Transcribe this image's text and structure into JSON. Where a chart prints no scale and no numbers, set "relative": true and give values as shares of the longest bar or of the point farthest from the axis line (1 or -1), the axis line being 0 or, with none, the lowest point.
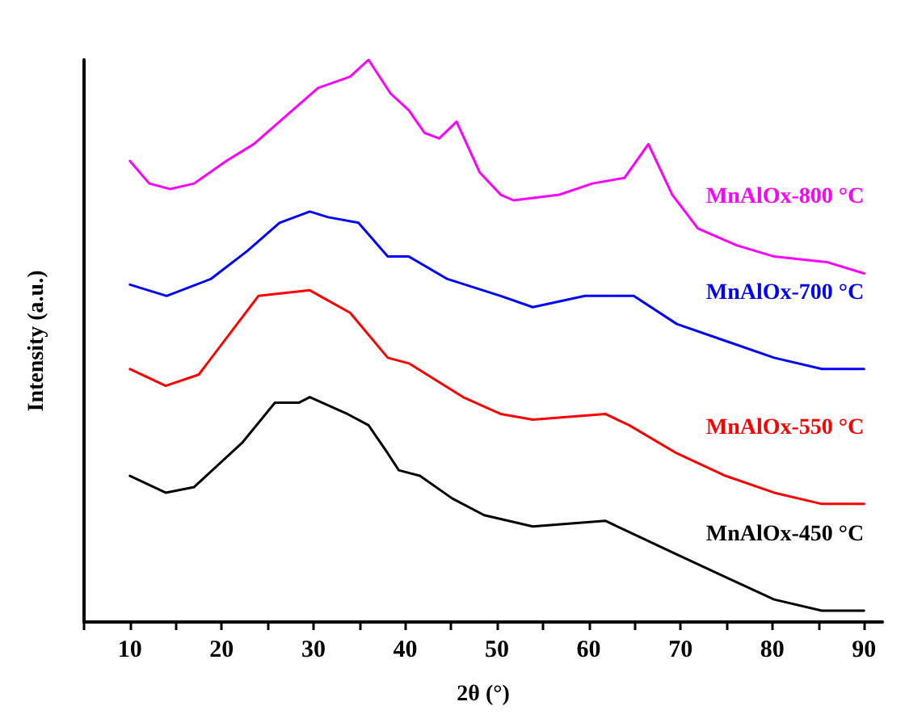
{
  "chart_data": {
    "type": "line",
    "xlabel": "2θ (°)",
    "ylabel": "Intensity (a.u.)",
    "relative": true,
    "marker": "none",
    "line_style": "solid",
    "grid": false,
    "legend": false,
    "xlim": [
      5,
      92
    ],
    "xticks": [
      {
        "value": 5,
        "label": null
      },
      10,
      {
        "value": 15,
        "label": null
      },
      20,
      {
        "value": 25,
        "label": null
      },
      30,
      {
        "value": 35,
        "label": null
      },
      40,
      {
        "value": 45,
        "label": null
      },
      50,
      {
        "value": 55,
        "label": null
      },
      60,
      {
        "value": 65,
        "label": null
      },
      70,
      {
        "value": 75,
        "label": null
      },
      80,
      {
        "value": 85,
        "label": null
      },
      90
    ],
    "series": [
      {
        "name": "MnAlOx-800 °C",
        "color": "#ff00ff",
        "x": [
          10,
          12.1,
          14.4,
          17,
          20.5,
          23.5,
          27,
          30.5,
          34,
          36,
          38.4,
          40.4,
          42.1,
          43.7,
          45.6,
          48.1,
          50.4,
          51.8,
          56.8,
          60.4,
          63.9,
          66.5,
          69.1,
          71.9,
          76.1,
          80.2,
          86,
          90
        ],
        "values": [
          0.82,
          0.78,
          0.77,
          0.78,
          0.82,
          0.85,
          0.9,
          0.95,
          0.97,
          1,
          0.94,
          0.91,
          0.87,
          0.86,
          0.89,
          0.8,
          0.76,
          0.75,
          0.76,
          0.78,
          0.79,
          0.85,
          0.76,
          0.7,
          0.67,
          0.65,
          0.64,
          0.62
        ]
      },
      {
        "name": "MnAlOx-700 °C",
        "color": "#0000ff",
        "x": [
          10,
          14,
          18.8,
          22.8,
          26.3,
          29.6,
          31.6,
          34.9,
          38.1,
          40.4,
          44.6,
          50.4,
          53.9,
          59.6,
          64.9,
          69.6,
          74.9,
          80.2,
          85.4,
          90
        ],
        "values": [
          0.6,
          0.58,
          0.61,
          0.66,
          0.71,
          0.73,
          0.72,
          0.71,
          0.65,
          0.65,
          0.61,
          0.58,
          0.56,
          0.58,
          0.58,
          0.53,
          0.5,
          0.47,
          0.45,
          0.45
        ]
      },
      {
        "name": "MnAlOx-550 °C",
        "color": "#ff0000",
        "x": [
          10,
          13.9,
          17.5,
          24,
          29.6,
          34,
          38.1,
          40.4,
          46.3,
          50.4,
          53.9,
          61.8,
          64.4,
          69.6,
          74.9,
          80.2,
          85.4,
          90
        ],
        "values": [
          0.45,
          0.42,
          0.44,
          0.58,
          0.59,
          0.55,
          0.47,
          0.46,
          0.4,
          0.37,
          0.36,
          0.37,
          0.35,
          0.3,
          0.26,
          0.23,
          0.21,
          0.21
        ]
      },
      {
        "name": "MnAlOx-450 °C",
        "color": "#000000",
        "x": [
          10,
          13.9,
          17,
          22.3,
          25.8,
          28.4,
          29.6,
          33.7,
          36,
          38.1,
          39.3,
          41.6,
          45.1,
          48.6,
          53.9,
          61.8,
          64.4,
          69.6,
          74.9,
          80.2,
          85.4,
          90
        ],
        "values": [
          0.26,
          0.23,
          0.24,
          0.32,
          0.39,
          0.39,
          0.4,
          0.37,
          0.35,
          0.3,
          0.27,
          0.26,
          0.22,
          0.19,
          0.17,
          0.18,
          0.16,
          0.12,
          0.08,
          0.04,
          0.02,
          0.02
        ]
      }
    ]
  }
}
